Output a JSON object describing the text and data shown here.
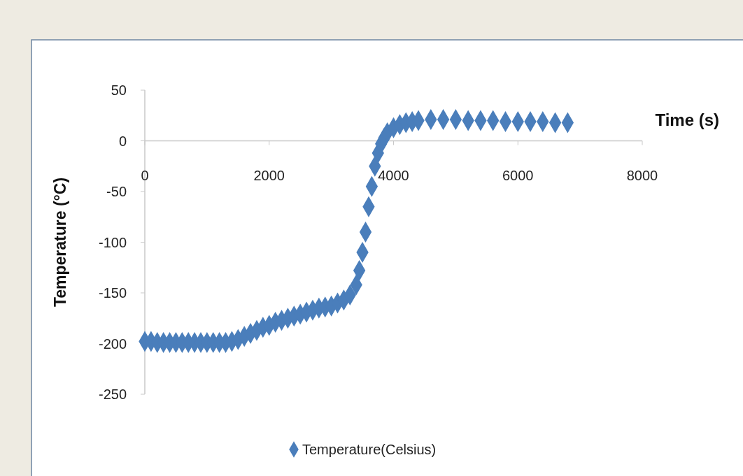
{
  "chart_data": {
    "type": "scatter",
    "xlabel": "Time (s)",
    "ylabel": "Temperature (°C)",
    "xlim": [
      0,
      8000
    ],
    "xticks": [
      0,
      2000,
      4000,
      6000,
      8000
    ],
    "ylim": [
      -250,
      50
    ],
    "yticks": [
      -250,
      -200,
      -150,
      -100,
      -50,
      0,
      50
    ],
    "grid": false,
    "legend": "bottom",
    "marker": "diamond",
    "series": [
      {
        "name": "Temperature(Celsius)",
        "color": "#4a7ebb",
        "x": [
          0,
          100,
          200,
          300,
          400,
          500,
          600,
          700,
          800,
          900,
          1000,
          1100,
          1200,
          1300,
          1400,
          1500,
          1600,
          1700,
          1800,
          1900,
          2000,
          2100,
          2200,
          2300,
          2400,
          2500,
          2600,
          2700,
          2800,
          2900,
          3000,
          3100,
          3200,
          3300,
          3400,
          3450,
          3500,
          3550,
          3600,
          3650,
          3700,
          3750,
          3800,
          3850,
          3900,
          4000,
          4100,
          4200,
          4300,
          4400,
          4600,
          4800,
          5000,
          5200,
          5400,
          5600,
          5800,
          6000,
          6200,
          6400,
          6600,
          6800
        ],
        "values": [
          -198,
          -198,
          -199,
          -199,
          -199,
          -199,
          -199,
          -199,
          -199,
          -199,
          -199,
          -199,
          -199,
          -199,
          -198,
          -196,
          -193,
          -190,
          -187,
          -184,
          -182,
          -179,
          -177,
          -175,
          -173,
          -171,
          -169,
          -167,
          -165,
          -164,
          -163,
          -160,
          -157,
          -152,
          -142,
          -128,
          -110,
          -90,
          -65,
          -45,
          -25,
          -12,
          -3,
          3,
          8,
          13,
          16,
          18,
          19,
          20,
          21,
          21,
          21,
          20,
          20,
          20,
          19,
          19,
          19,
          19,
          18,
          18
        ]
      }
    ]
  }
}
